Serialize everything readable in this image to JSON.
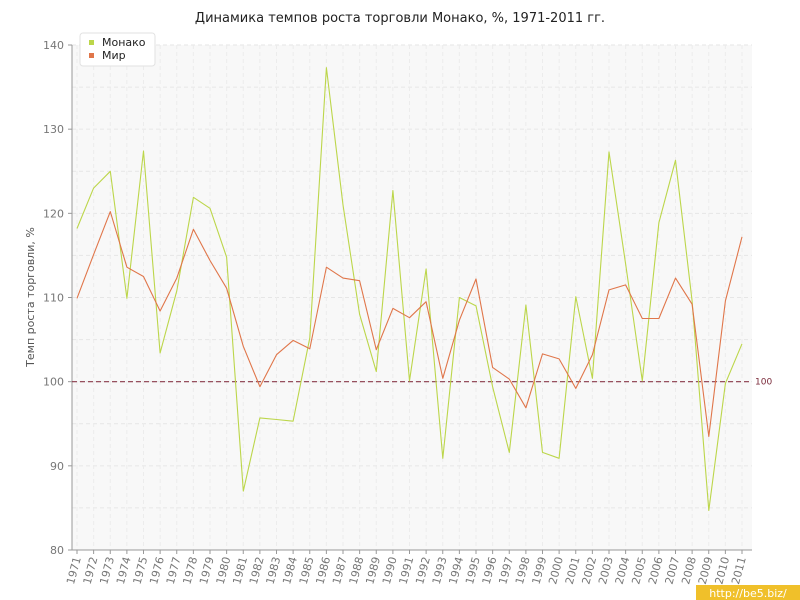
{
  "chart_data": {
    "type": "line",
    "title": "Динамика темпов роста торговли Монако, %, 1971-2011 гг.",
    "ylabel": "Темп роста торговли, %",
    "xlabel": "",
    "ylim": [
      80,
      140
    ],
    "yticks": [
      "80",
      "90",
      "100",
      "110",
      "120",
      "130",
      "140"
    ],
    "ytick_values": [
      80,
      90,
      100,
      110,
      120,
      130,
      140
    ],
    "categories": [
      "1971",
      "1972",
      "1973",
      "1974",
      "1975",
      "1976",
      "1977",
      "1978",
      "1979",
      "1980",
      "1981",
      "1982",
      "1983",
      "1984",
      "1985",
      "1986",
      "1987",
      "1988",
      "1989",
      "1990",
      "1991",
      "1992",
      "1993",
      "1994",
      "1995",
      "1996",
      "1997",
      "1998",
      "1999",
      "2000",
      "2001",
      "2002",
      "2003",
      "2004",
      "2005",
      "2006",
      "2007",
      "2008",
      "2009",
      "2010",
      "2011"
    ],
    "series": [
      {
        "name": "Монако",
        "color": "#bcd64a",
        "values": [
          118.2,
          123.0,
          125.0,
          109.9,
          127.4,
          103.4,
          110.8,
          121.9,
          120.6,
          114.8,
          87.0,
          95.7,
          95.5,
          95.3,
          105.2,
          137.3,
          121.0,
          108.0,
          101.2,
          122.7,
          100.1,
          113.4,
          90.9,
          110.0,
          109.0,
          99.4,
          91.6,
          109.1,
          91.6,
          90.9,
          110.1,
          100.4,
          127.3,
          114.0,
          100.1,
          118.9,
          126.3,
          109.6,
          84.7,
          99.8,
          104.5
        ]
      },
      {
        "name": "Мир",
        "color": "#e0764a",
        "values": [
          109.9,
          115.1,
          120.2,
          113.6,
          112.5,
          108.4,
          112.3,
          118.1,
          114.4,
          111.1,
          104.2,
          99.4,
          103.2,
          104.9,
          103.9,
          113.6,
          112.3,
          112.0,
          103.8,
          108.7,
          107.6,
          109.5,
          100.4,
          107.3,
          112.2,
          101.7,
          100.3,
          96.9,
          103.3,
          102.7,
          99.2,
          103.2,
          110.9,
          111.5,
          107.5,
          107.5,
          112.3,
          109.2,
          93.5,
          109.6,
          117.2
        ]
      }
    ],
    "reference_line": {
      "value": 100,
      "label": "100",
      "color": "#8a3a4a"
    },
    "grid": true,
    "legend_position": "top-left"
  },
  "watermark": "http://be5.biz/"
}
